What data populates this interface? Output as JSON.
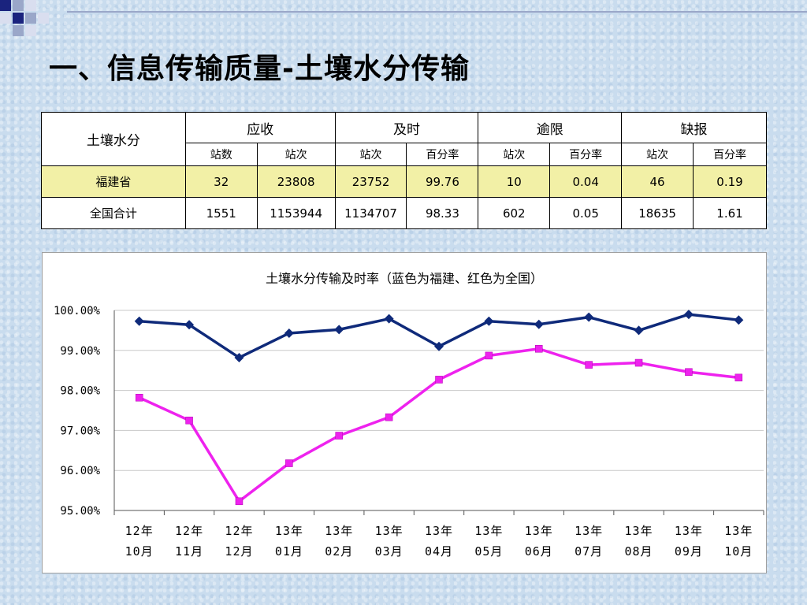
{
  "slide": {
    "title": "一、信息传输质量-土壤水分传输"
  },
  "table": {
    "corner": "土壤水分",
    "groups": [
      "应收",
      "及时",
      "逾限",
      "缺报"
    ],
    "subheaders": [
      "站数",
      "站次",
      "站次",
      "百分率",
      "站次",
      "百分率",
      "站次",
      "百分率"
    ],
    "rows": [
      {
        "name": "福建省",
        "cells": [
          "32",
          "23808",
          "23752",
          "99.76",
          "10",
          "0.04",
          "46",
          "0.19"
        ]
      },
      {
        "name": "全国合计",
        "cells": [
          "1551",
          "1153944",
          "1134707",
          "98.33",
          "602",
          "0.05",
          "18635",
          "1.61"
        ]
      }
    ]
  },
  "colors": {
    "fujian": "#0f2a7a",
    "national": "#ee22ee",
    "highlight_row": "#f2f0a6"
  },
  "chart_data": {
    "type": "line",
    "title": "土壤水分传输及时率（蓝色为福建、红色为全国）",
    "categories": [
      [
        "12年",
        "10月"
      ],
      [
        "12年",
        "11月"
      ],
      [
        "12年",
        "12月"
      ],
      [
        "13年",
        "01月"
      ],
      [
        "13年",
        "02月"
      ],
      [
        "13年",
        "03月"
      ],
      [
        "13年",
        "04月"
      ],
      [
        "13年",
        "05月"
      ],
      [
        "13年",
        "06月"
      ],
      [
        "13年",
        "07月"
      ],
      [
        "13年",
        "08月"
      ],
      [
        "13年",
        "09月"
      ],
      [
        "13年",
        "10月"
      ]
    ],
    "series": [
      {
        "color": "#0f2a7a",
        "marker": "diamond",
        "values": [
          99.73,
          99.64,
          98.82,
          99.43,
          99.52,
          99.79,
          99.1,
          99.73,
          99.65,
          99.83,
          99.5,
          99.9,
          99.76
        ]
      },
      {
        "color": "#ee22ee",
        "marker": "square",
        "values": [
          97.82,
          97.25,
          95.23,
          96.18,
          96.87,
          97.33,
          98.27,
          98.87,
          99.04,
          98.64,
          98.69,
          98.46,
          98.32
        ]
      }
    ],
    "ylim": [
      95,
      100
    ],
    "yticks": [
      "95.00%",
      "96.00%",
      "97.00%",
      "98.00%",
      "99.00%",
      "100.00%"
    ],
    "grid": true,
    "legend": "none"
  }
}
